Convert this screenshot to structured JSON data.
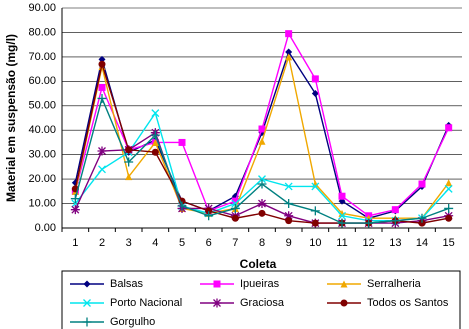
{
  "chart_data": {
    "type": "line",
    "x_label": "Coleta",
    "y_label": "Material em suspensão (mg/l)",
    "categories": [
      "1",
      "2",
      "3",
      "4",
      "5",
      "6",
      "7",
      "8",
      "9",
      "10",
      "11",
      "12",
      "13",
      "14",
      "15"
    ],
    "ylim": [
      0,
      90
    ],
    "yticks": [
      {
        "value": 0,
        "label": "0.00"
      },
      {
        "value": 10,
        "label": "10.00"
      },
      {
        "value": 20,
        "label": "20.00"
      },
      {
        "value": 30,
        "label": "30.00"
      },
      {
        "value": 40,
        "label": "40.00"
      },
      {
        "value": 50,
        "label": "50.00"
      },
      {
        "value": 60,
        "label": "60.00"
      },
      {
        "value": 70,
        "label": "70.00"
      },
      {
        "value": 80,
        "label": "80.00"
      },
      {
        "value": 90,
        "label": "90.00"
      }
    ],
    "grid": true,
    "legend": "bottom",
    "series": [
      {
        "name": "Balsas",
        "color": "#000080",
        "marker": "diamond",
        "values": [
          18.5,
          69,
          31,
          36,
          11,
          7,
          13,
          39,
          72,
          55,
          11,
          4,
          7,
          17,
          42
        ]
      },
      {
        "name": "Ipueiras",
        "color": "#ff00ff",
        "marker": "square",
        "values": [
          15,
          57.5,
          32,
          35,
          35,
          7,
          11,
          40.5,
          79.5,
          61,
          13,
          5,
          7.5,
          18,
          41
        ]
      },
      {
        "name": "Serralheria",
        "color": "#f0a800",
        "marker": "triangle",
        "values": [
          15,
          66,
          21,
          35,
          8,
          6,
          8,
          35.5,
          70,
          18,
          6,
          4,
          4,
          4,
          18.5
        ]
      },
      {
        "name": "Porto Nacional",
        "color": "#00e5ee",
        "marker": "x",
        "values": [
          10,
          24,
          31,
          47,
          9,
          6,
          10,
          20,
          17,
          17,
          5,
          3,
          3,
          4,
          16
        ]
      },
      {
        "name": "Graciosa",
        "color": "#800080",
        "marker": "star",
        "values": [
          7.5,
          31.5,
          32,
          39,
          8,
          8,
          5,
          10,
          5,
          2,
          2,
          2,
          2,
          3,
          5
        ]
      },
      {
        "name": "Todos os Santos",
        "color": "#800000",
        "marker": "circle",
        "values": [
          16,
          67,
          32,
          31,
          11,
          7,
          4,
          6,
          3,
          2,
          2,
          2,
          3,
          2,
          4
        ]
      },
      {
        "name": "Gorgulho",
        "color": "#008080",
        "marker": "plus",
        "values": [
          12,
          53,
          27,
          38,
          9,
          5,
          8,
          18,
          10,
          7,
          2,
          2,
          3,
          4,
          8
        ]
      }
    ]
  }
}
